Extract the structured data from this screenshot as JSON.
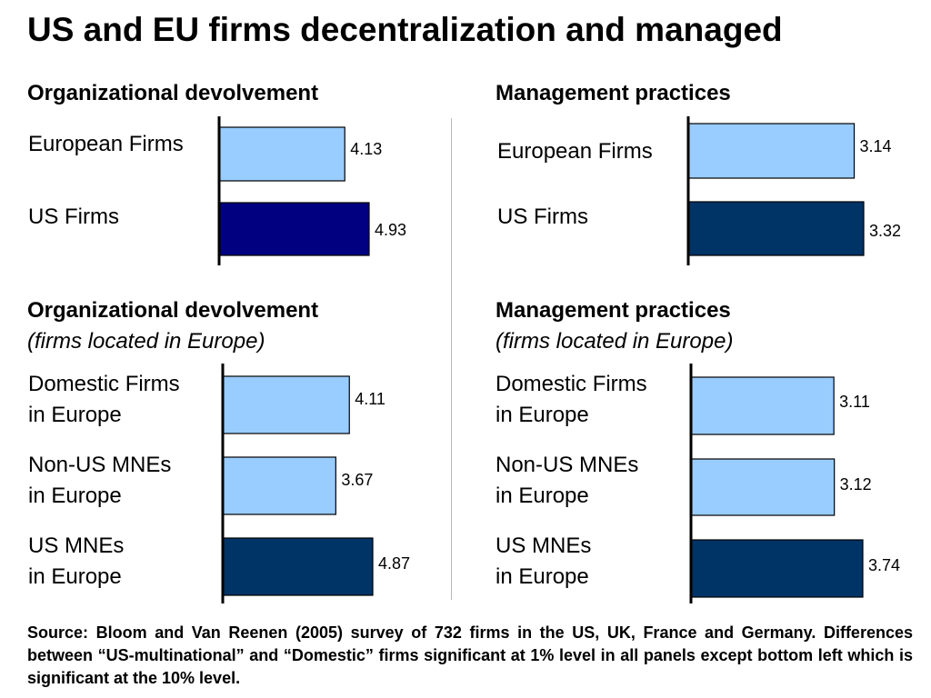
{
  "title": "US and EU firms decentralization and managed",
  "chart_data": [
    {
      "type": "bar",
      "orientation": "horizontal",
      "title": "Organizational devolvement",
      "subtitle": "",
      "categories": [
        "European Firms",
        "US Firms"
      ],
      "values": [
        4.13,
        4.93
      ],
      "value_labels": [
        "4.13",
        "4.93"
      ],
      "colors": [
        "#99ccff",
        "#000080"
      ]
    },
    {
      "type": "bar",
      "orientation": "horizontal",
      "title": "Management practices",
      "subtitle": "",
      "categories": [
        "European Firms",
        "US Firms"
      ],
      "values": [
        3.14,
        3.32
      ],
      "value_labels": [
        "3.14",
        "3.32"
      ],
      "colors": [
        "#99ccff",
        "#003366"
      ]
    },
    {
      "type": "bar",
      "orientation": "horizontal",
      "title": "Organizational devolvement",
      "subtitle": "(firms located in Europe)",
      "categories": [
        [
          "Domestic Firms",
          "in Europe"
        ],
        [
          "Non-US MNEs",
          "in Europe"
        ],
        [
          "US MNEs",
          "in Europe"
        ]
      ],
      "values": [
        4.11,
        3.67,
        4.87
      ],
      "value_labels": [
        "4.11",
        "3.67",
        "4.87"
      ],
      "colors": [
        "#99ccff",
        "#99ccff",
        "#003366"
      ]
    },
    {
      "type": "bar",
      "orientation": "horizontal",
      "title": "Management practices",
      "subtitle": "(firms located in Europe)",
      "categories": [
        [
          "Domestic Firms",
          "in Europe"
        ],
        [
          "Non-US MNEs",
          "in Europe"
        ],
        [
          "US MNEs",
          "in Europe"
        ]
      ],
      "values": [
        3.11,
        3.12,
        3.74
      ],
      "value_labels": [
        "3.11",
        "3.12",
        "3.74"
      ],
      "colors": [
        "#99ccff",
        "#99ccff",
        "#003366"
      ]
    }
  ],
  "source": "Source: Bloom and Van Reenen (2005) survey of 732 firms in the US, UK, France and Germany. Differences between “US-multinational” and “Domestic” firms significant at 1% level in all panels except bottom left which is significant at the 10% level."
}
